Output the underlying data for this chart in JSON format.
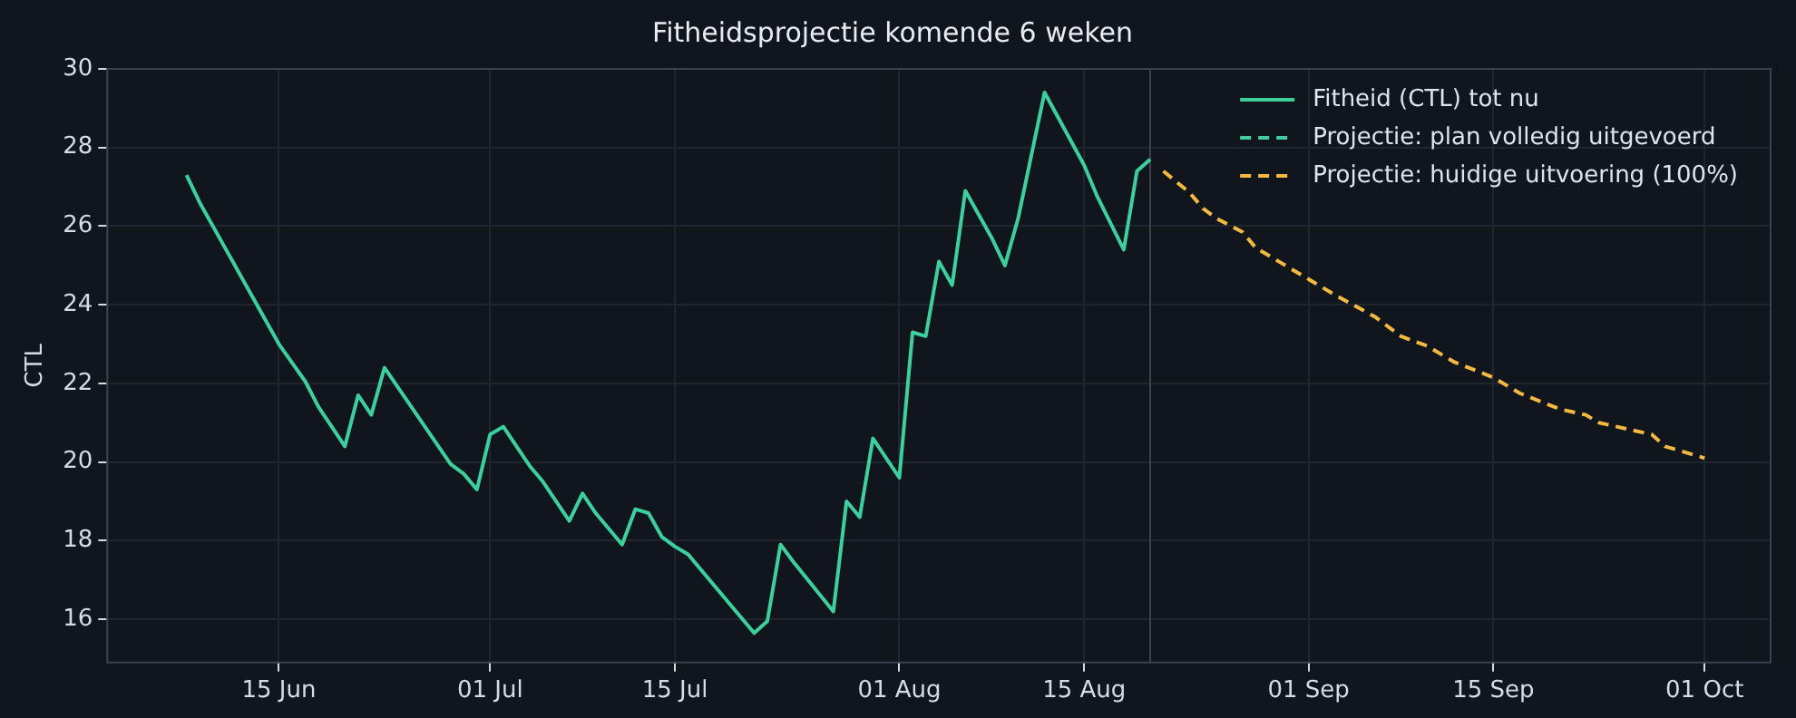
{
  "chart_data": {
    "type": "line",
    "title": "Fitheidsprojectie komende 6 weken",
    "ylabel": "CTL",
    "series": [
      {
        "name": "Fitheid (CTL) tot nu",
        "color": "#3ecf9f",
        "line_style": "solid",
        "x": [
          "--06-08",
          "--06-09",
          "--06-12",
          "--06-15",
          "--06-17",
          "--06-18",
          "--06-20",
          "--06-21",
          "--06-22",
          "--06-23",
          "--06-28",
          "--06-29",
          "--06-30",
          "--07-01",
          "--07-02",
          "--07-04",
          "--07-05",
          "--07-07",
          "--07-08",
          "--07-09",
          "--07-11",
          "--07-12",
          "--07-13",
          "--07-14",
          "--07-15",
          "--07-16",
          "--07-21",
          "--07-22",
          "--07-23",
          "--07-24",
          "--07-27",
          "--07-28",
          "--07-29",
          "--07-30",
          "--08-01",
          "--08-02",
          "--08-03",
          "--08-04",
          "--08-05",
          "--08-06",
          "--08-08",
          "--08-09",
          "--08-10",
          "--08-12",
          "--08-15",
          "--08-16",
          "--08-18",
          "--08-19",
          "--08-20"
        ],
        "values": [
          27.3,
          26.6,
          24.8,
          23.0,
          22.05,
          21.4,
          20.4,
          21.7,
          21.2,
          22.4,
          19.95,
          19.7,
          19.3,
          20.7,
          20.9,
          19.9,
          19.5,
          18.5,
          19.2,
          18.7,
          17.9,
          18.8,
          18.7,
          18.1,
          17.85,
          17.65,
          15.65,
          15.95,
          17.9,
          17.45,
          16.2,
          19.0,
          18.6,
          20.6,
          19.6,
          23.3,
          23.2,
          25.1,
          24.5,
          26.9,
          25.7,
          25.0,
          26.2,
          29.4,
          27.55,
          26.75,
          25.4,
          27.4,
          27.7
        ]
      },
      {
        "name": "Projectie: plan volledig uitgevoerd",
        "color": "#3ecf9f",
        "line_style": "dashed"
      },
      {
        "name": "Projectie: huidige uitvoering (100%)",
        "color": "#f5b942",
        "line_style": "dashed",
        "x": [
          "--08-21",
          "--08-23",
          "--08-24",
          "--08-25",
          "--08-27",
          "--08-28",
          "--08-30",
          "--09-01",
          "--09-03",
          "--09-06",
          "--09-08",
          "--09-10",
          "--09-12",
          "--09-15",
          "--09-17",
          "--09-20",
          "--09-22",
          "--09-23",
          "--09-27",
          "--09-28",
          "--10-01"
        ],
        "values": [
          27.4,
          26.85,
          26.45,
          26.2,
          25.85,
          25.45,
          25.05,
          24.65,
          24.25,
          23.7,
          23.2,
          22.95,
          22.55,
          22.15,
          21.75,
          21.35,
          21.2,
          21.0,
          20.7,
          20.4,
          20.1
        ]
      }
    ],
    "xlim": [
      "--06-02",
      "--10-06"
    ],
    "xticks": [
      {
        "value": "--06-15",
        "label": "15 Jun"
      },
      {
        "value": "--07-01",
        "label": "01 Jul"
      },
      {
        "value": "--07-15",
        "label": "15 Jul"
      },
      {
        "value": "--08-01",
        "label": "01 Aug"
      },
      {
        "value": "--08-15",
        "label": "15 Aug"
      },
      {
        "value": "--09-01",
        "label": "01 Sep"
      },
      {
        "value": "--09-15",
        "label": "15 Sep"
      },
      {
        "value": "--10-01",
        "label": "01 Oct"
      }
    ],
    "ylim": [
      14.9,
      30
    ],
    "yticks": [
      16,
      18,
      20,
      22,
      24,
      26,
      28,
      30
    ],
    "ref_lines": [
      {
        "axis": "x",
        "value": "--08-20",
        "color": "#3a4250",
        "line_style": "solid"
      }
    ],
    "grid": true,
    "legend": "top right",
    "marker": "none"
  }
}
